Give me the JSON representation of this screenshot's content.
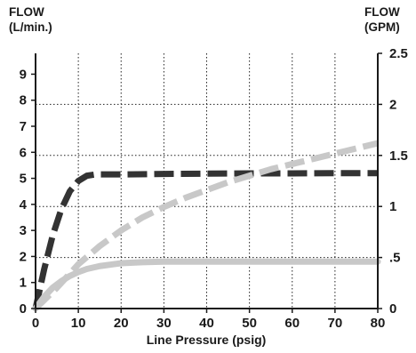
{
  "chart_data": {
    "type": "line",
    "title": "",
    "y_left_label": [
      "FLOW",
      "(L/min.)"
    ],
    "y_right_label": [
      "FLOW",
      "(GPM)"
    ],
    "xlabel": "Line Pressure (psig)",
    "xlim": [
      0,
      80
    ],
    "ylim_left": [
      0,
      9.8
    ],
    "ylim_right": [
      0,
      2.5
    ],
    "x_ticks": [
      "0",
      "10",
      "20",
      "30",
      "40",
      "50",
      "60",
      "70",
      "80"
    ],
    "y_left_ticks": [
      "0",
      "1",
      "2",
      "3",
      "4",
      "5",
      "6",
      "7",
      "8",
      "9"
    ],
    "y_right_ticks": [
      {
        "label": "0",
        "value": 0
      },
      {
        "label": ".5",
        "value": 0.5
      },
      {
        "label": "1",
        "value": 1
      },
      {
        "label": "1.5",
        "value": 1.5
      },
      {
        "label": "2",
        "value": 2
      },
      {
        "label": "2.5",
        "value": 2.5
      }
    ],
    "grid": true,
    "series": [
      {
        "color": "#333333",
        "style": "dashed",
        "x": [
          0,
          2,
          4,
          6,
          8,
          10,
          12,
          14,
          20,
          30,
          40,
          50,
          60,
          70,
          80
        ],
        "y": [
          0,
          1.5,
          2.8,
          3.8,
          4.5,
          4.9,
          5.1,
          5.15,
          5.15,
          5.17,
          5.18,
          5.19,
          5.19,
          5.2,
          5.2
        ]
      },
      {
        "color": "#c8c8c8",
        "style": "dashed",
        "x": [
          0,
          5,
          10,
          15,
          20,
          25,
          30,
          35,
          40,
          45,
          50,
          55,
          60,
          65,
          70,
          75,
          80
        ],
        "y": [
          0,
          0.8,
          1.7,
          2.4,
          3.0,
          3.5,
          3.9,
          4.25,
          4.55,
          4.85,
          5.1,
          5.35,
          5.55,
          5.75,
          5.95,
          6.15,
          6.35
        ]
      },
      {
        "color": "#c8c8c8",
        "style": "solid",
        "x": [
          0,
          2,
          4,
          6,
          8,
          10,
          12,
          15,
          20,
          25,
          30,
          40,
          50,
          60,
          70,
          80
        ],
        "y": [
          0,
          0.45,
          0.8,
          1.05,
          1.25,
          1.4,
          1.52,
          1.63,
          1.74,
          1.78,
          1.8,
          1.8,
          1.8,
          1.8,
          1.8,
          1.8
        ]
      }
    ]
  }
}
